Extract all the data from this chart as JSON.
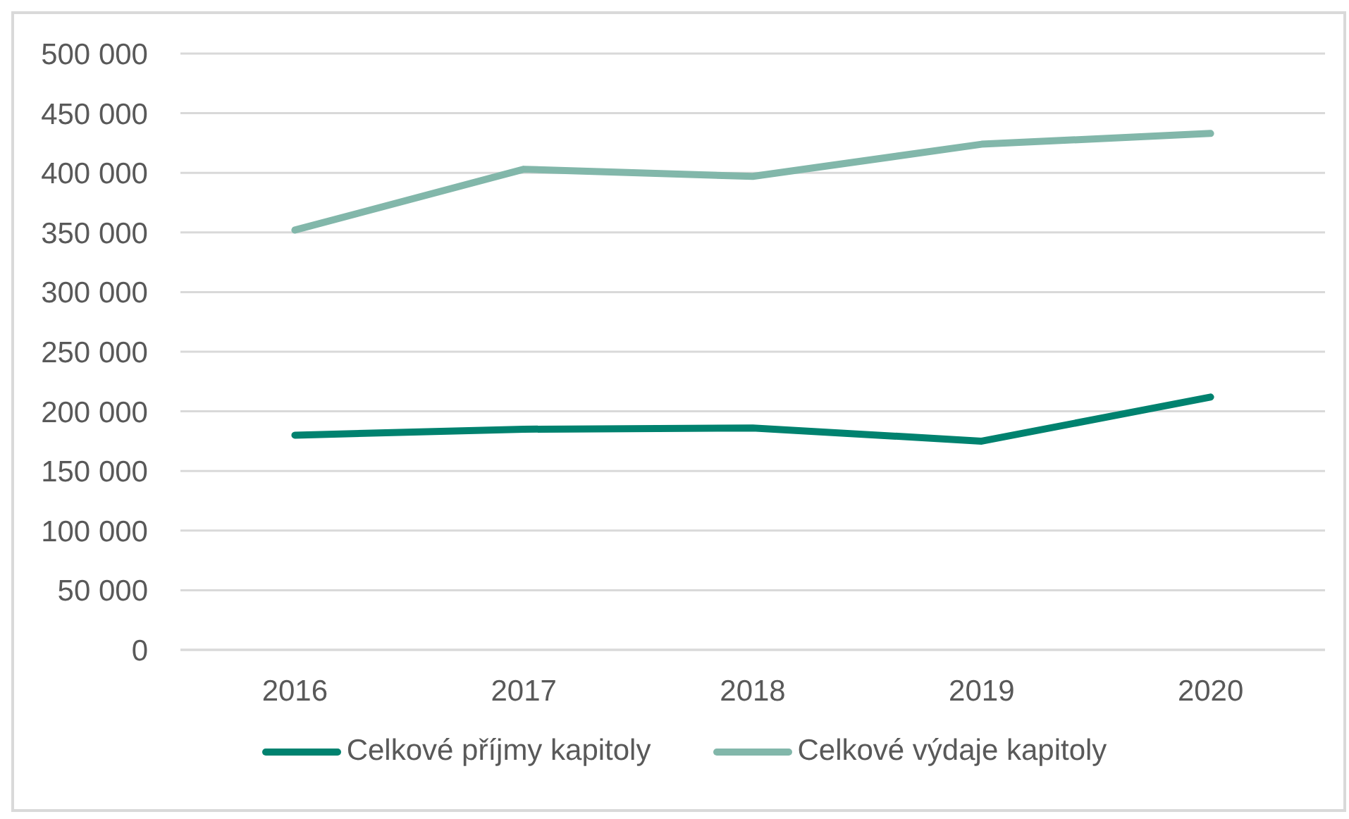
{
  "chart_data": {
    "type": "line",
    "categories": [
      "2016",
      "2017",
      "2018",
      "2019",
      "2020"
    ],
    "series": [
      {
        "name": "Celkové příjmy kapitoly",
        "color": "#00826f",
        "values": [
          180000,
          185000,
          186000,
          175000,
          212000
        ]
      },
      {
        "name": "Celkové výdaje kapitoly",
        "color": "#82b7aa",
        "values": [
          352000,
          403000,
          397000,
          424000,
          433000
        ]
      }
    ],
    "ylim": [
      0,
      500000
    ],
    "yticks": [
      0,
      {
        "value": 50000,
        "label": "50 000"
      },
      {
        "value": 100000,
        "label": "100 000"
      },
      {
        "value": 150000,
        "label": "150 000"
      },
      {
        "value": 200000,
        "label": "200 000"
      },
      {
        "value": 250000,
        "label": "250 000"
      },
      {
        "value": 300000,
        "label": "300 000"
      },
      {
        "value": 350000,
        "label": "350 000"
      },
      {
        "value": 400000,
        "label": "400 000"
      },
      {
        "value": 450000,
        "label": "450 000"
      },
      {
        "value": 500000,
        "label": "500 000"
      }
    ],
    "grid": "y",
    "legend": "bottom",
    "marker": "none",
    "line_style": "solid"
  }
}
